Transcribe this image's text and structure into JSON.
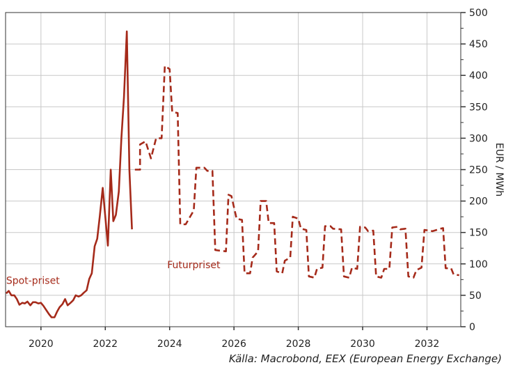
{
  "source_note": "Källa: Macrobond, EEX (European Energy Exchange)",
  "colors": {
    "series": "#a52a1a",
    "grid": "#c8c8c8",
    "axis": "#333333"
  },
  "chart_data": {
    "type": "line",
    "ylabel": "EUR / MWh",
    "ylim": [
      0,
      500
    ],
    "xlim": [
      2018.9,
      2033.05
    ],
    "y_ticks": [
      0,
      50,
      100,
      150,
      200,
      250,
      300,
      350,
      400,
      450,
      500
    ],
    "x_ticks": [
      2020,
      2022,
      2024,
      2026,
      2028,
      2030,
      2032
    ],
    "grid": true,
    "y_axis_side": "right",
    "series": [
      {
        "name": "Spot-priset",
        "style": "solid",
        "label_pos": [
          2019.75,
          68
        ],
        "points": [
          [
            2018.92,
            53
          ],
          [
            2019.0,
            57
          ],
          [
            2019.08,
            50
          ],
          [
            2019.17,
            50
          ],
          [
            2019.25,
            44
          ],
          [
            2019.33,
            35
          ],
          [
            2019.42,
            38
          ],
          [
            2019.5,
            37
          ],
          [
            2019.58,
            40
          ],
          [
            2019.67,
            34
          ],
          [
            2019.75,
            39
          ],
          [
            2019.83,
            39
          ],
          [
            2019.92,
            37
          ],
          [
            2020.0,
            38
          ],
          [
            2020.08,
            33
          ],
          [
            2020.17,
            26
          ],
          [
            2020.25,
            20
          ],
          [
            2020.33,
            15
          ],
          [
            2020.42,
            15
          ],
          [
            2020.5,
            24
          ],
          [
            2020.58,
            31
          ],
          [
            2020.67,
            36
          ],
          [
            2020.75,
            44
          ],
          [
            2020.83,
            34
          ],
          [
            2020.92,
            38
          ],
          [
            2021.0,
            42
          ],
          [
            2021.08,
            50
          ],
          [
            2021.17,
            48
          ],
          [
            2021.25,
            50
          ],
          [
            2021.33,
            54
          ],
          [
            2021.42,
            58
          ],
          [
            2021.5,
            76
          ],
          [
            2021.58,
            85
          ],
          [
            2021.67,
            128
          ],
          [
            2021.75,
            140
          ],
          [
            2021.83,
            176
          ],
          [
            2021.92,
            221
          ],
          [
            2022.0,
            175
          ],
          [
            2022.08,
            129
          ],
          [
            2022.17,
            250
          ],
          [
            2022.25,
            168
          ],
          [
            2022.33,
            178
          ],
          [
            2022.42,
            215
          ],
          [
            2022.5,
            300
          ],
          [
            2022.58,
            365
          ],
          [
            2022.67,
            470
          ],
          [
            2022.75,
            250
          ],
          [
            2022.83,
            155
          ]
        ]
      },
      {
        "name": "Futurpriset",
        "style": "dashed",
        "label_pos": [
          2024.75,
          93
        ],
        "points": [
          [
            2022.92,
            250
          ],
          [
            2023.08,
            250
          ],
          [
            2023.08,
            290
          ],
          [
            2023.25,
            295
          ],
          [
            2023.42,
            268
          ],
          [
            2023.58,
            300
          ],
          [
            2023.75,
            300
          ],
          [
            2023.85,
            415
          ],
          [
            2024.0,
            410
          ],
          [
            2024.08,
            342
          ],
          [
            2024.25,
            340
          ],
          [
            2024.33,
            163
          ],
          [
            2024.5,
            163
          ],
          [
            2024.75,
            185
          ],
          [
            2024.83,
            253
          ],
          [
            2025.08,
            253
          ],
          [
            2025.17,
            248
          ],
          [
            2025.33,
            248
          ],
          [
            2025.42,
            122
          ],
          [
            2025.75,
            120
          ],
          [
            2025.83,
            210
          ],
          [
            2025.92,
            208
          ],
          [
            2026.08,
            172
          ],
          [
            2026.25,
            170
          ],
          [
            2026.33,
            85
          ],
          [
            2026.5,
            85
          ],
          [
            2026.58,
            110
          ],
          [
            2026.75,
            120
          ],
          [
            2026.83,
            200
          ],
          [
            2027.0,
            200
          ],
          [
            2027.08,
            165
          ],
          [
            2027.25,
            165
          ],
          [
            2027.33,
            88
          ],
          [
            2027.5,
            85
          ],
          [
            2027.58,
            105
          ],
          [
            2027.75,
            110
          ],
          [
            2027.83,
            175
          ],
          [
            2028.0,
            172
          ],
          [
            2028.08,
            156
          ],
          [
            2028.25,
            154
          ],
          [
            2028.33,
            80
          ],
          [
            2028.5,
            78
          ],
          [
            2028.58,
            92
          ],
          [
            2028.75,
            94
          ],
          [
            2028.83,
            160
          ],
          [
            2029.0,
            160
          ],
          [
            2029.08,
            156
          ],
          [
            2029.33,
            155
          ],
          [
            2029.42,
            80
          ],
          [
            2029.58,
            78
          ],
          [
            2029.67,
            94
          ],
          [
            2029.83,
            92
          ],
          [
            2029.92,
            159
          ],
          [
            2030.08,
            158
          ],
          [
            2030.17,
            152
          ],
          [
            2030.33,
            153
          ],
          [
            2030.42,
            80
          ],
          [
            2030.58,
            78
          ],
          [
            2030.67,
            92
          ],
          [
            2030.83,
            92
          ],
          [
            2030.92,
            158
          ],
          [
            2031.08,
            159
          ],
          [
            2031.17,
            155
          ],
          [
            2031.33,
            156
          ],
          [
            2031.42,
            80
          ],
          [
            2031.58,
            78
          ],
          [
            2031.67,
            90
          ],
          [
            2031.83,
            94
          ],
          [
            2031.92,
            154
          ],
          [
            2032.08,
            153
          ],
          [
            2032.17,
            152
          ],
          [
            2032.42,
            156
          ],
          [
            2032.5,
            157
          ],
          [
            2032.58,
            93
          ],
          [
            2032.75,
            93
          ],
          [
            2032.83,
            83
          ],
          [
            2033.0,
            82
          ]
        ]
      }
    ]
  }
}
